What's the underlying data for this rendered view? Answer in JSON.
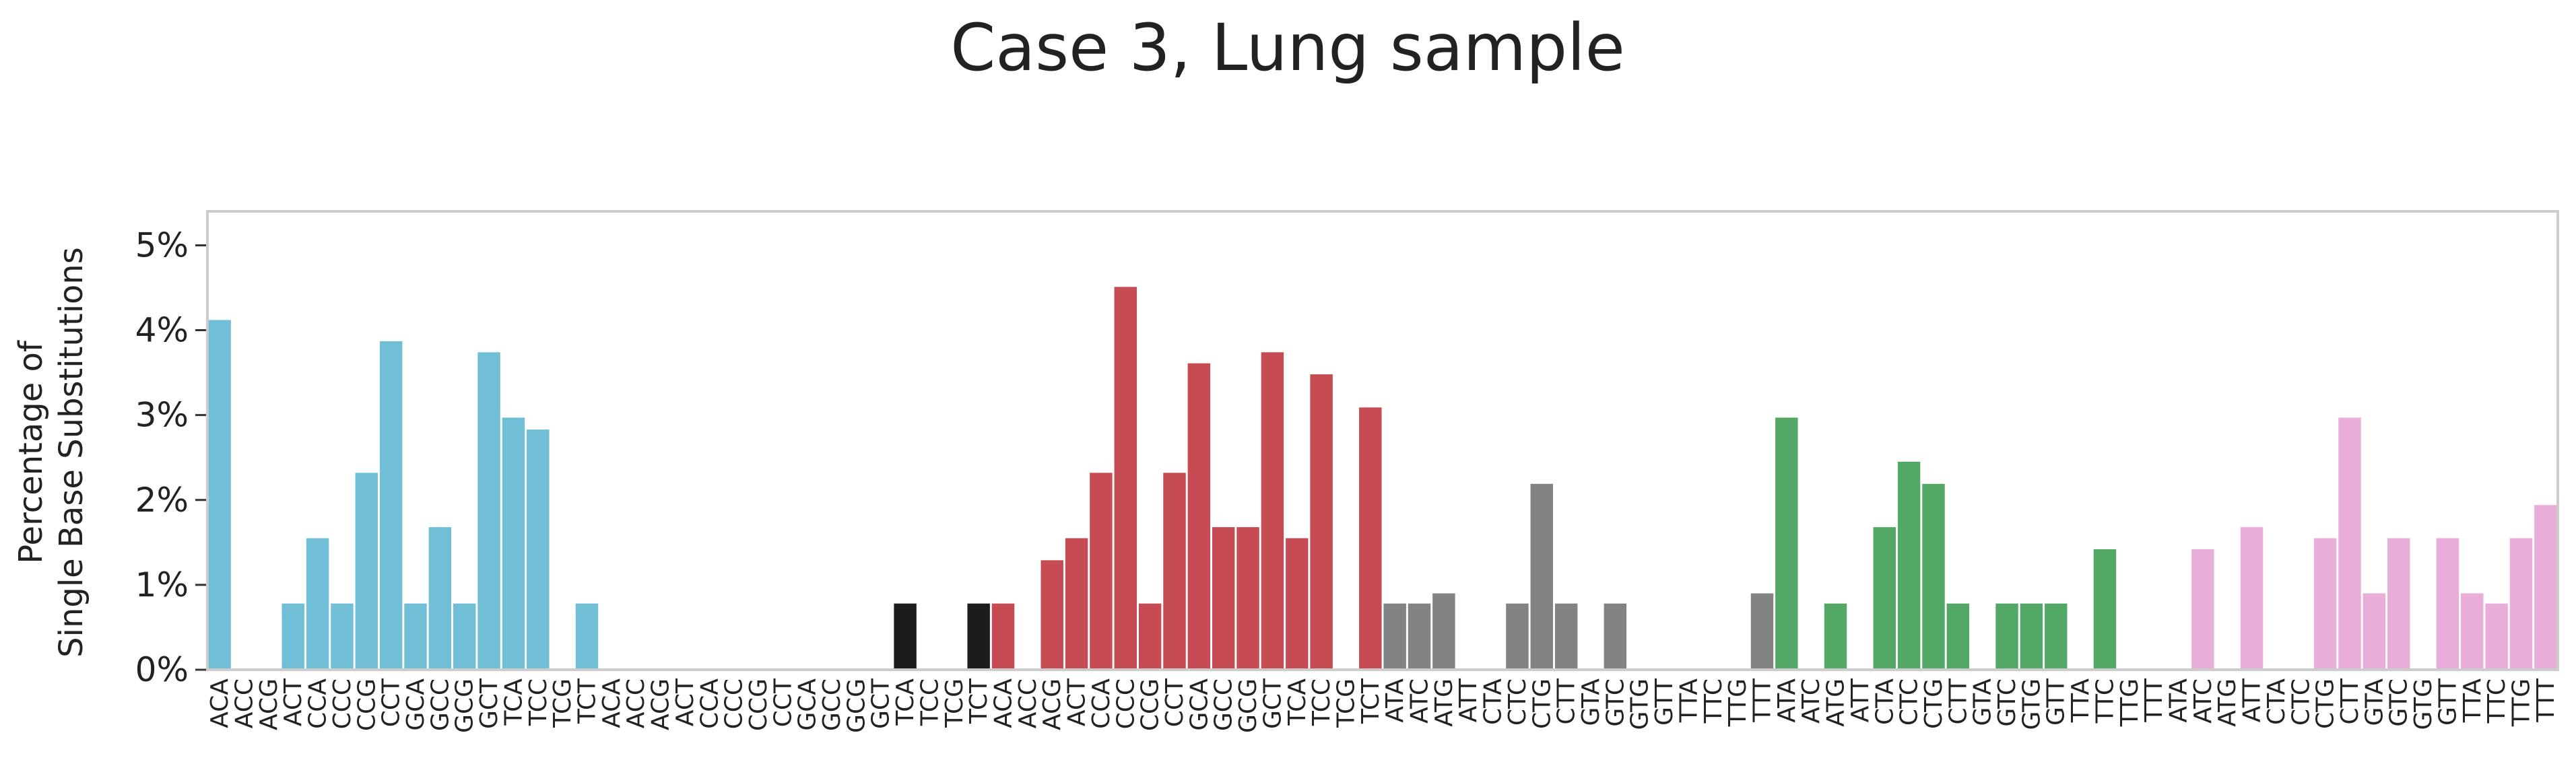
{
  "chart_data": {
    "type": "bar",
    "title": "Case 3, Lung sample",
    "ylabel_line1": "Percentage of",
    "ylabel_line2": "Single Base Substitutions",
    "ylim": [
      0,
      5.4
    ],
    "yticks": [
      {
        "value": 0,
        "label": "0%"
      },
      {
        "value": 1,
        "label": "1%"
      },
      {
        "value": 2,
        "label": "2%"
      },
      {
        "value": 3,
        "label": "3%"
      },
      {
        "value": 4,
        "label": "4%"
      },
      {
        "value": 5,
        "label": "5%"
      }
    ],
    "grid": false,
    "groups": [
      {
        "color": "#71BFD6",
        "categories": [
          "ACA",
          "ACC",
          "ACG",
          "ACT",
          "CCA",
          "CCC",
          "CCG",
          "CCT",
          "GCA",
          "GCC",
          "GCG",
          "GCT",
          "TCA",
          "TCC",
          "TCG",
          "TCT"
        ],
        "values": [
          4.12,
          0,
          0,
          0.78,
          1.55,
          0.78,
          2.32,
          3.87,
          0.78,
          1.68,
          0.78,
          3.74,
          2.97,
          2.83,
          0,
          0.78
        ]
      },
      {
        "color": "#1C1C1C",
        "categories": [
          "ACA",
          "ACC",
          "ACG",
          "ACT",
          "CCA",
          "CCC",
          "CCG",
          "CCT",
          "GCA",
          "GCC",
          "GCG",
          "GCT",
          "TCA",
          "TCC",
          "TCG",
          "TCT"
        ],
        "values": [
          0,
          0,
          0,
          0,
          0,
          0,
          0,
          0,
          0,
          0,
          0,
          0,
          0.78,
          0,
          0,
          0.78
        ]
      },
      {
        "color": "#C64B52",
        "categories": [
          "ACA",
          "ACC",
          "ACG",
          "ACT",
          "CCA",
          "CCC",
          "CCG",
          "CCT",
          "GCA",
          "GCC",
          "GCG",
          "GCT",
          "TCA",
          "TCC",
          "TCG",
          "TCT"
        ],
        "values": [
          0.78,
          0,
          1.29,
          1.55,
          2.32,
          4.51,
          0.78,
          2.32,
          3.61,
          1.68,
          1.68,
          3.74,
          1.55,
          3.48,
          0,
          3.09
        ]
      },
      {
        "color": "#838383",
        "categories": [
          "ATA",
          "ATC",
          "ATG",
          "ATT",
          "CTA",
          "CTC",
          "CTG",
          "CTT",
          "GTA",
          "GTC",
          "GTG",
          "GTT",
          "TTA",
          "TTC",
          "TTG",
          "TTT"
        ],
        "values": [
          0.78,
          0.78,
          0.9,
          0,
          0,
          0.78,
          2.19,
          0.78,
          0,
          0.78,
          0,
          0,
          0,
          0,
          0,
          0.9
        ]
      },
      {
        "color": "#54A866",
        "categories": [
          "ATA",
          "ATC",
          "ATG",
          "ATT",
          "CTA",
          "CTC",
          "CTG",
          "CTT",
          "GTA",
          "GTC",
          "GTG",
          "GTT",
          "TTA",
          "TTC",
          "TTG",
          "TTT"
        ],
        "values": [
          2.97,
          0,
          0.78,
          0,
          1.68,
          2.45,
          2.19,
          0.78,
          0,
          0.78,
          0.78,
          0.78,
          0,
          1.42,
          0,
          0
        ]
      },
      {
        "color": "#E8ADD8",
        "categories": [
          "ATA",
          "ATC",
          "ATG",
          "ATT",
          "CTA",
          "CTC",
          "CTG",
          "CTT",
          "GTA",
          "GTC",
          "GTG",
          "GTT",
          "TTA",
          "TTC",
          "TTG",
          "TTT"
        ],
        "values": [
          0,
          1.42,
          0,
          1.68,
          0,
          0,
          1.55,
          2.97,
          0.9,
          1.55,
          0,
          1.55,
          0.9,
          0.78,
          1.55,
          1.94
        ]
      }
    ]
  }
}
